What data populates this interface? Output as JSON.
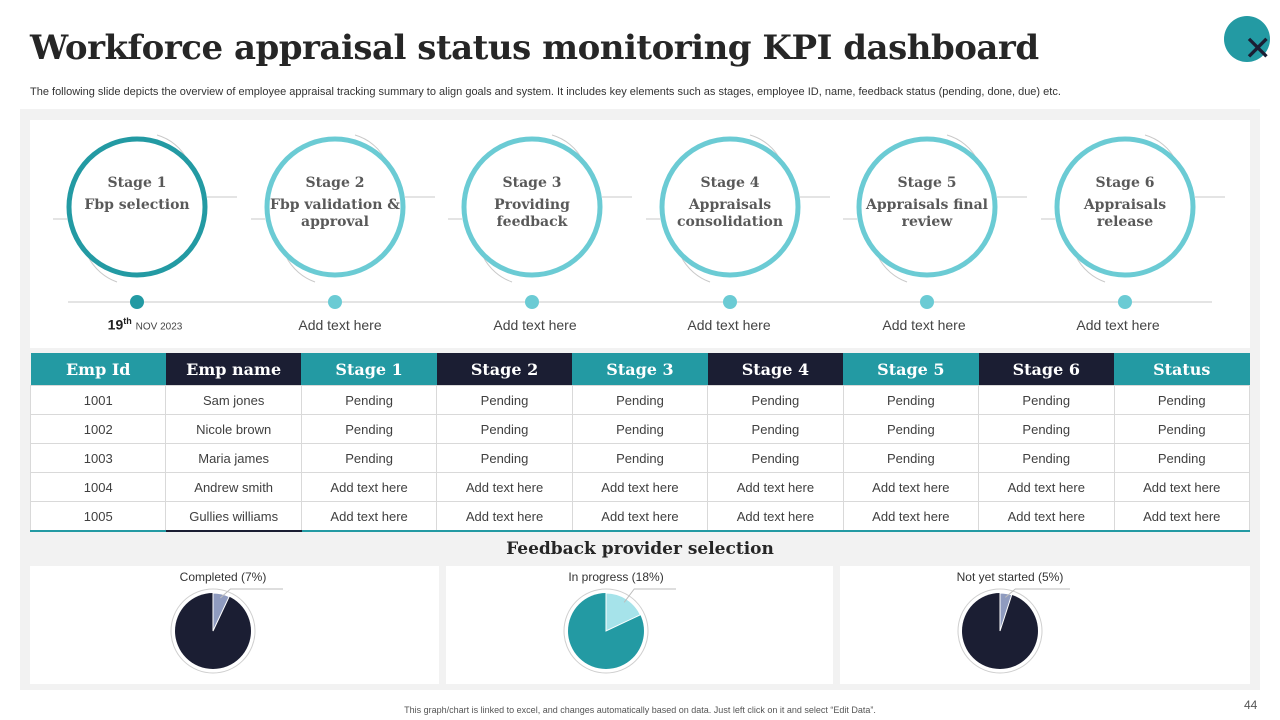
{
  "title": "Workforce appraisal status monitoring KPI dashboard",
  "subtitle": "The following slide depicts the overview of employee appraisal tracking summary to align goals and system. It includes key elements such as stages, employee ID, name, feedback status (pending, done, due) etc.",
  "close_icon": "✕",
  "colors": {
    "teal": "#239aa3",
    "light_teal": "#6bcbd4",
    "navy": "#1b1e33",
    "pale_teal": "#a6e3ea",
    "slate": "#8f9bbf"
  },
  "stages": [
    {
      "head": "Stage 1",
      "name": "Fbp selection"
    },
    {
      "head": "Stage 2",
      "name": "Fbp validation & approval"
    },
    {
      "head": "Stage 3",
      "name": "Providing feedback"
    },
    {
      "head": "Stage 4",
      "name": "Appraisals consolidation"
    },
    {
      "head": "Stage 5",
      "name": "Appraisals final review"
    },
    {
      "head": "Stage 6",
      "name": "Appraisals release"
    }
  ],
  "timeline": {
    "date_day": "19",
    "date_suffix": "th",
    "date_rest": "NOV 2023",
    "placeholders": [
      "Add text here",
      "Add text here",
      "Add text here",
      "Add text here",
      "Add text here"
    ]
  },
  "table": {
    "headers": [
      "Emp Id",
      "Emp name",
      "Stage 1",
      "Stage 2",
      "Stage 3",
      "Stage 4",
      "Stage 5",
      "Stage 6",
      "Status"
    ],
    "rows": [
      [
        "1001",
        "Sam jones",
        "Pending",
        "Pending",
        "Pending",
        "Pending",
        "Pending",
        "Pending",
        "Pending"
      ],
      [
        "1002",
        "Nicole brown",
        "Pending",
        "Pending",
        "Pending",
        "Pending",
        "Pending",
        "Pending",
        "Pending"
      ],
      [
        "1003",
        "Maria james",
        "Pending",
        "Pending",
        "Pending",
        "Pending",
        "Pending",
        "Pending",
        "Pending"
      ],
      [
        "1004",
        "Andrew smith",
        "Add text here",
        "Add text here",
        "Add text here",
        "Add text here",
        "Add text here",
        "Add text here",
        "Add text here"
      ],
      [
        "1005",
        "Gullies williams",
        "Add text here",
        "Add text here",
        "Add text here",
        "Add text here",
        "Add text here",
        "Add text here",
        "Add text here"
      ]
    ]
  },
  "feedback": {
    "title": "Feedback provider selection",
    "pies": [
      {
        "label": "Completed (7%)",
        "percent": 7,
        "fill": "#8f9bbf",
        "rest": "#1b1e33"
      },
      {
        "label": "In progress (18%)",
        "percent": 18,
        "fill": "#a6e3ea",
        "rest": "#239aa3"
      },
      {
        "label": "Not yet started (5%)",
        "percent": 5,
        "fill": "#8f9bbf",
        "rest": "#1b1e33"
      }
    ]
  },
  "footer": "This graph/chart is linked to excel, and changes automatically based on data. Just left click on it and select “Edit Data”.",
  "page_number": "44"
}
